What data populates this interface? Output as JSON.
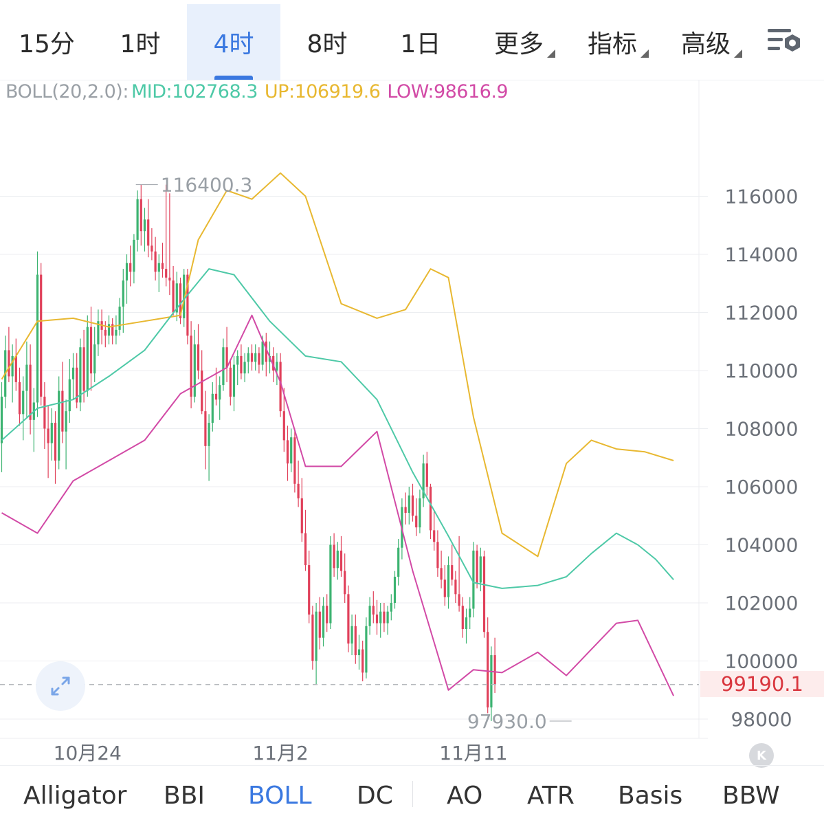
{
  "timeframe_tabs": [
    {
      "label": "15分",
      "active": false,
      "has_caret": false
    },
    {
      "label": "1时",
      "active": false,
      "has_caret": false
    },
    {
      "label": "4时",
      "active": true,
      "has_caret": false
    },
    {
      "label": "8时",
      "active": false,
      "has_caret": false
    },
    {
      "label": "1日",
      "active": false,
      "has_caret": false
    },
    {
      "label": "更多",
      "active": false,
      "has_caret": true
    },
    {
      "label": "指标",
      "active": false,
      "has_caret": true
    },
    {
      "label": "高级",
      "active": false,
      "has_caret": true
    }
  ],
  "settings_icon": "chart-settings-icon",
  "legend": {
    "name": "BOLL(20,2.0):",
    "mid": "MID:102768.3",
    "up": "UP:106919.6",
    "low": "LOW:98616.9"
  },
  "current_price_label": "99190.1",
  "indicator_tabs": [
    {
      "label": "Alligator",
      "active": false
    },
    {
      "label": "BBI",
      "active": false
    },
    {
      "label": "BOLL",
      "active": true
    },
    {
      "label": "DC",
      "active": false
    },
    {
      "label": "AO",
      "active": false
    },
    {
      "label": "ATR",
      "active": false
    },
    {
      "label": "Basis",
      "active": false
    },
    {
      "label": "BBW",
      "active": false
    }
  ],
  "colors": {
    "up_candle": "#3cb371",
    "down_candle": "#e0405a",
    "mid": "#4ec9a7",
    "upper": "#e8b831",
    "lower": "#d24aa6",
    "accent": "#3a78e0",
    "price_line": "#b5b8bd"
  },
  "chart_data": {
    "type": "candlestick",
    "indicator": "BOLL(20,2.0)",
    "ylim": [
      97000,
      118800
    ],
    "y_ticks": [
      98000,
      100000,
      102000,
      104000,
      106000,
      108000,
      110000,
      112000,
      114000,
      116000
    ],
    "y_tick_labels": [
      "98000",
      "100000",
      "102000",
      "104000",
      "106000",
      "108000",
      "110000",
      "112000",
      "114000",
      "116000"
    ],
    "x_labels": [
      {
        "label": "10月24",
        "index": 24
      },
      {
        "label": "11月2",
        "index": 78
      },
      {
        "label": "11月11",
        "index": 132
      }
    ],
    "high_annotation": {
      "label": "116400.3",
      "value": 116400.3,
      "index": 46
    },
    "low_annotation": {
      "label": "97930.0",
      "value": 97930.0,
      "index": 161
    },
    "current_price": 99190.1,
    "candles_ohlc": [
      [
        107500,
        109600,
        106500,
        109100
      ],
      [
        109100,
        111200,
        108700,
        110700
      ],
      [
        110700,
        111500,
        109600,
        109800
      ],
      [
        109800,
        110900,
        108900,
        110500
      ],
      [
        110500,
        111100,
        109300,
        109600
      ],
      [
        109600,
        110100,
        108100,
        108500
      ],
      [
        108500,
        109800,
        107600,
        109300
      ],
      [
        109300,
        111000,
        108400,
        110200
      ],
      [
        110200,
        110900,
        107800,
        108300
      ],
      [
        108300,
        109400,
        107200,
        108900
      ],
      [
        108900,
        114100,
        108400,
        113300
      ],
      [
        113300,
        113700,
        108800,
        109100
      ],
      [
        109100,
        109600,
        107300,
        108000
      ],
      [
        108000,
        108800,
        106300,
        107500
      ],
      [
        107500,
        108700,
        106900,
        108200
      ],
      [
        108200,
        108600,
        106100,
        106900
      ],
      [
        106900,
        109800,
        106600,
        109300
      ],
      [
        109300,
        110300,
        107500,
        107900
      ],
      [
        107900,
        109000,
        106600,
        108600
      ],
      [
        108600,
        110400,
        108200,
        109700
      ],
      [
        109700,
        110600,
        109000,
        110100
      ],
      [
        110100,
        110600,
        108700,
        108900
      ],
      [
        108900,
        111100,
        108600,
        110800
      ],
      [
        110800,
        111400,
        108900,
        109300
      ],
      [
        109300,
        111900,
        109100,
        111500
      ],
      [
        111500,
        112200,
        109300,
        109900
      ],
      [
        109900,
        111500,
        109600,
        110900
      ],
      [
        110900,
        112100,
        110500,
        111700
      ],
      [
        111700,
        112100,
        110900,
        111400
      ],
      [
        111400,
        111700,
        110800,
        111200
      ],
      [
        111200,
        111900,
        110900,
        111600
      ],
      [
        111600,
        111800,
        110900,
        111200
      ],
      [
        111200,
        111900,
        110900,
        111400
      ],
      [
        111400,
        112500,
        111200,
        112200
      ],
      [
        112200,
        113500,
        111300,
        113100
      ],
      [
        113100,
        114000,
        112300,
        113700
      ],
      [
        113700,
        114300,
        112900,
        113400
      ],
      [
        113400,
        114700,
        113000,
        114500
      ],
      [
        114500,
        116200,
        114100,
        115900
      ],
      [
        115900,
        116400,
        114300,
        114800
      ],
      [
        114800,
        115600,
        114100,
        115200
      ],
      [
        115200,
        115900,
        113900,
        114300
      ],
      [
        114300,
        114900,
        113800,
        114100
      ],
      [
        114100,
        114600,
        113100,
        113400
      ],
      [
        113400,
        114000,
        112700,
        113700
      ],
      [
        113700,
        114400,
        113200,
        113500
      ],
      [
        113500,
        116400,
        112900,
        113200
      ],
      [
        113200,
        116100,
        112600,
        113100
      ],
      [
        113100,
        113600,
        111900,
        112000
      ],
      [
        112000,
        113400,
        111700,
        113000
      ],
      [
        113000,
        113200,
        111600,
        111800
      ],
      [
        111800,
        113500,
        111500,
        113300
      ],
      [
        113300,
        113500,
        110900,
        111200
      ],
      [
        111200,
        111700,
        108700,
        109100
      ],
      [
        109100,
        111400,
        108900,
        110900
      ],
      [
        110900,
        111600,
        109700,
        110000
      ],
      [
        110000,
        110700,
        108500,
        108600
      ],
      [
        108600,
        109300,
        106600,
        107400
      ],
      [
        107400,
        108500,
        106200,
        108200
      ],
      [
        108200,
        109600,
        107900,
        109200
      ],
      [
        109200,
        110100,
        108800,
        109000
      ],
      [
        109000,
        109800,
        108300,
        109500
      ],
      [
        109500,
        111100,
        109300,
        110800
      ],
      [
        110800,
        111500,
        109600,
        110100
      ],
      [
        110100,
        110400,
        108800,
        109100
      ],
      [
        109100,
        110500,
        108600,
        110200
      ],
      [
        110200,
        110700,
        109500,
        110500
      ],
      [
        110500,
        110900,
        109700,
        109900
      ],
      [
        109900,
        110600,
        109600,
        110300
      ],
      [
        110300,
        110800,
        109900,
        110600
      ],
      [
        110600,
        110900,
        110000,
        110300
      ],
      [
        110300,
        110900,
        110000,
        110600
      ],
      [
        110600,
        110800,
        109900,
        110200
      ],
      [
        110200,
        111200,
        110000,
        111000
      ],
      [
        111000,
        111300,
        109800,
        110300
      ],
      [
        110300,
        111000,
        109900,
        110500
      ],
      [
        110500,
        110800,
        109600,
        110000
      ],
      [
        110000,
        110600,
        109500,
        110300
      ],
      [
        110300,
        110600,
        108400,
        108600
      ],
      [
        108600,
        109400,
        107200,
        107600
      ],
      [
        107600,
        108100,
        106200,
        106800
      ],
      [
        106800,
        108000,
        106500,
        107700
      ],
      [
        107700,
        108000,
        105800,
        106100
      ],
      [
        106100,
        106900,
        105300,
        105600
      ],
      [
        105600,
        106300,
        104100,
        104400
      ],
      [
        104400,
        105200,
        103100,
        103300
      ],
      [
        103300,
        103800,
        101300,
        101600
      ],
      [
        101600,
        101900,
        99700,
        100000
      ],
      [
        100000,
        102000,
        99200,
        101700
      ],
      [
        101700,
        102200,
        100400,
        100800
      ],
      [
        100800,
        102200,
        100500,
        101900
      ],
      [
        101900,
        102300,
        101000,
        101300
      ],
      [
        101300,
        104300,
        101100,
        104000
      ],
      [
        104000,
        104400,
        102900,
        103200
      ],
      [
        103200,
        104100,
        102800,
        103800
      ],
      [
        103800,
        104300,
        102900,
        103100
      ],
      [
        103100,
        103700,
        102000,
        102300
      ],
      [
        102300,
        102600,
        100300,
        100600
      ],
      [
        100600,
        101600,
        100200,
        101200
      ],
      [
        101200,
        101600,
        99900,
        100200
      ],
      [
        100200,
        100900,
        99700,
        100400
      ],
      [
        100400,
        100700,
        99300,
        99600
      ],
      [
        99600,
        101500,
        99400,
        101200
      ],
      [
        101200,
        102200,
        100900,
        101900
      ],
      [
        101900,
        102400,
        101300,
        101600
      ],
      [
        101600,
        102100,
        100900,
        101300
      ],
      [
        101300,
        102000,
        100800,
        101700
      ],
      [
        101700,
        102000,
        101000,
        101300
      ],
      [
        101300,
        101900,
        100900,
        101700
      ],
      [
        101700,
        102300,
        101400,
        102000
      ],
      [
        102000,
        103100,
        101800,
        102900
      ],
      [
        102900,
        104200,
        102600,
        103900
      ],
      [
        103900,
        105600,
        103500,
        105300
      ],
      [
        105300,
        105800,
        104700,
        105100
      ],
      [
        105100,
        106000,
        104700,
        105700
      ],
      [
        105700,
        106100,
        104800,
        105000
      ],
      [
        105000,
        105600,
        104300,
        104600
      ],
      [
        104600,
        105900,
        104400,
        105600
      ],
      [
        105600,
        107100,
        105300,
        106800
      ],
      [
        106800,
        107200,
        105700,
        106000
      ],
      [
        106000,
        106100,
        104200,
        104500
      ],
      [
        104500,
        105200,
        103800,
        104100
      ],
      [
        104100,
        104500,
        102900,
        103200
      ],
      [
        103200,
        103800,
        102500,
        102800
      ],
      [
        102800,
        103300,
        101900,
        102200
      ],
      [
        102200,
        103600,
        101800,
        103300
      ],
      [
        103300,
        104000,
        102600,
        102800
      ],
      [
        102800,
        103100,
        102000,
        102300
      ],
      [
        102300,
        104300,
        101700,
        101900
      ],
      [
        101900,
        102200,
        100800,
        101100
      ],
      [
        101100,
        101800,
        100600,
        101500
      ],
      [
        101500,
        102200,
        101100,
        101800
      ],
      [
        101800,
        104100,
        101500,
        103800
      ],
      [
        103800,
        104000,
        102500,
        102700
      ],
      [
        102700,
        103900,
        102400,
        103600
      ],
      [
        103600,
        103800,
        100800,
        101000
      ],
      [
        101000,
        101500,
        98200,
        98400
      ],
      [
        98400,
        100500,
        97930,
        100200
      ],
      [
        100200,
        100800,
        98900,
        99190
      ]
    ],
    "mid_band_samples": [
      [
        0,
        107600
      ],
      [
        10,
        108700
      ],
      [
        20,
        109000
      ],
      [
        30,
        109800
      ],
      [
        40,
        110700
      ],
      [
        50,
        112300
      ],
      [
        58,
        113500
      ],
      [
        65,
        113300
      ],
      [
        75,
        111700
      ],
      [
        85,
        110500
      ],
      [
        95,
        110300
      ],
      [
        105,
        109000
      ],
      [
        115,
        106500
      ],
      [
        125,
        104300
      ],
      [
        132,
        102700
      ],
      [
        140,
        102500
      ],
      [
        150,
        102600
      ],
      [
        158,
        102900
      ],
      [
        165,
        103700
      ],
      [
        172,
        104400
      ],
      [
        178,
        104000
      ],
      [
        183,
        103500
      ],
      [
        188,
        102800
      ]
    ],
    "upper_band_samples": [
      [
        0,
        109700
      ],
      [
        10,
        111700
      ],
      [
        20,
        111800
      ],
      [
        30,
        111500
      ],
      [
        40,
        111700
      ],
      [
        50,
        111900
      ],
      [
        55,
        114500
      ],
      [
        63,
        116200
      ],
      [
        70,
        115900
      ],
      [
        78,
        116800
      ],
      [
        85,
        116000
      ],
      [
        95,
        112300
      ],
      [
        105,
        111800
      ],
      [
        113,
        112100
      ],
      [
        120,
        113500
      ],
      [
        125,
        113200
      ],
      [
        132,
        108400
      ],
      [
        140,
        104400
      ],
      [
        150,
        103600
      ],
      [
        158,
        106800
      ],
      [
        165,
        107600
      ],
      [
        172,
        107300
      ],
      [
        180,
        107200
      ],
      [
        188,
        106900
      ]
    ],
    "lower_band_samples": [
      [
        0,
        105100
      ],
      [
        10,
        104400
      ],
      [
        20,
        106200
      ],
      [
        30,
        106900
      ],
      [
        40,
        107600
      ],
      [
        50,
        109200
      ],
      [
        63,
        110100
      ],
      [
        70,
        111900
      ],
      [
        78,
        109600
      ],
      [
        85,
        106700
      ],
      [
        95,
        106700
      ],
      [
        105,
        107900
      ],
      [
        115,
        103100
      ],
      [
        125,
        99000
      ],
      [
        132,
        99700
      ],
      [
        140,
        99600
      ],
      [
        150,
        100300
      ],
      [
        158,
        99500
      ],
      [
        165,
        100400
      ],
      [
        172,
        101300
      ],
      [
        178,
        101400
      ],
      [
        183,
        100100
      ],
      [
        188,
        98800
      ]
    ]
  }
}
